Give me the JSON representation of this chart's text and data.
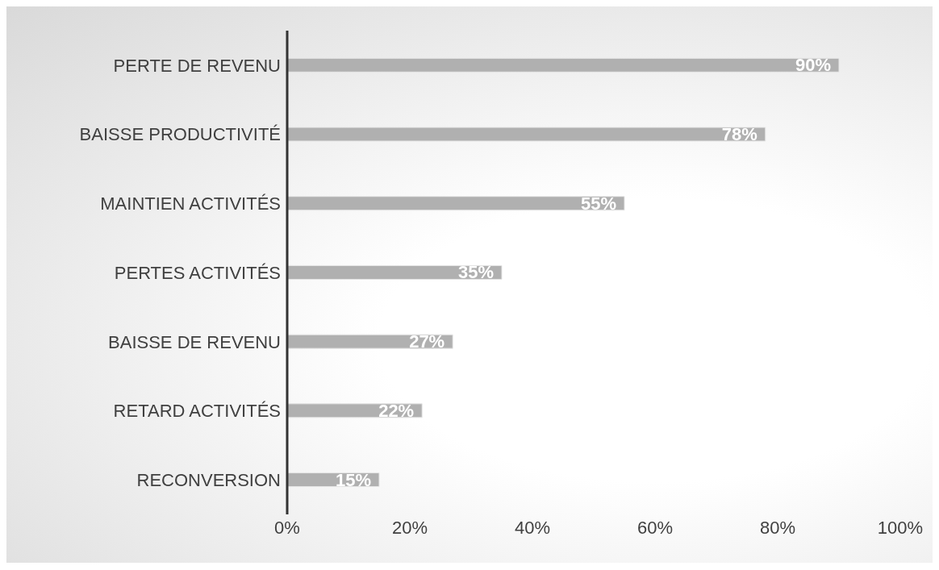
{
  "chart_data": {
    "type": "bar",
    "orientation": "horizontal",
    "categories": [
      "PERTE DE REVENU",
      "BAISSE PRODUCTIVITÉ",
      "MAINTIEN ACTIVITÉS",
      "PERTES ACTIVITÉS",
      "BAISSE DE REVENU",
      "RETARD ACTIVITÉS",
      "RECONVERSION"
    ],
    "values": [
      90,
      78,
      55,
      35,
      27,
      22,
      15
    ],
    "value_labels": [
      "90%",
      "78%",
      "55%",
      "35%",
      "27%",
      "22%",
      "15%"
    ],
    "color": "#b0b0b0",
    "xlim": [
      0,
      100
    ],
    "xticks": [
      {
        "value": 0,
        "label": "0%"
      },
      {
        "value": 20,
        "label": "20%"
      },
      {
        "value": 40,
        "label": "40%"
      },
      {
        "value": 60,
        "label": "60%"
      },
      {
        "value": 80,
        "label": "80%"
      },
      {
        "value": 100,
        "label": "100%"
      }
    ]
  }
}
